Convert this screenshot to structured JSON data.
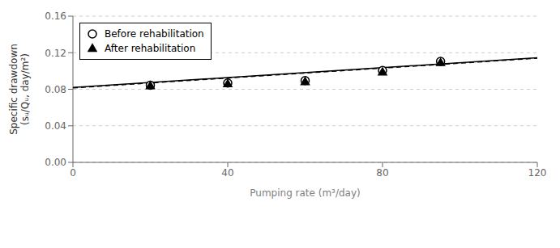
{
  "chart_data": {
    "type": "scatter",
    "xlabel": "Pumping rate (m³/day)",
    "ylabel": "Specific drawdown\n(sᵤ/Qᵤ, day/m²)",
    "xlim": [
      0,
      120
    ],
    "ylim": [
      0,
      0.16
    ],
    "xticks": [
      0,
      40,
      80,
      120
    ],
    "yticks": [
      {
        "value": 0,
        "label": "0.00"
      },
      0.04,
      0.08,
      0.12,
      0.16
    ],
    "grid": "y",
    "legend": "upper left",
    "series": [
      {
        "name": "Before rehabilitation",
        "type": "scatter",
        "color": "#000000",
        "marker": "open_circle",
        "x": [
          20,
          40,
          60,
          80,
          95
        ],
        "values": [
          0.0845,
          0.0868,
          0.0895,
          0.1005,
          0.1105
        ]
      },
      {
        "name": "After rehabilitation",
        "type": "scatter",
        "color": "#000000",
        "marker": "triangle",
        "x": [
          20,
          40,
          60,
          80,
          95
        ],
        "values": [
          0.0838,
          0.0858,
          0.0882,
          0.0988,
          0.109
        ]
      },
      {
        "type": "line",
        "color": "#000000",
        "line_style": "solid",
        "x": [
          0,
          120
        ],
        "values": [
          0.082,
          0.1145
        ]
      },
      {
        "type": "line",
        "color": "#000000",
        "line_style": "dashed",
        "x": [
          0,
          120
        ],
        "values": [
          0.0815,
          0.114
        ]
      }
    ]
  }
}
